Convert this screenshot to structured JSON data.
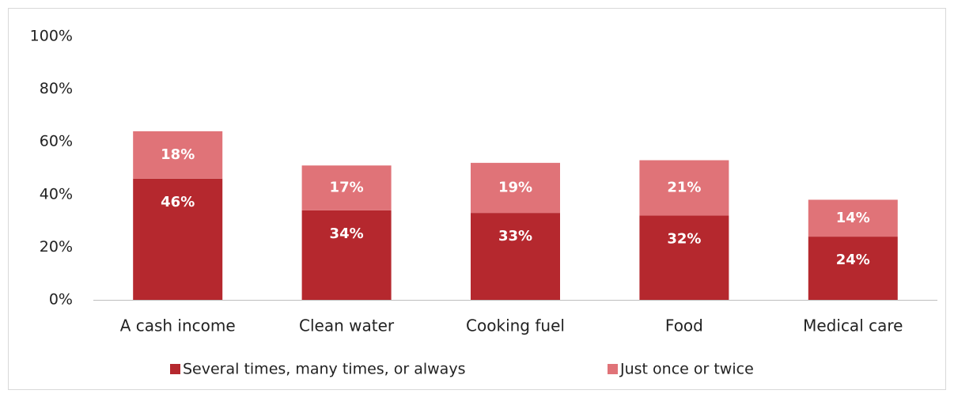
{
  "chart_data": {
    "type": "stacked_bar",
    "categories": [
      "A cash income",
      "Clean water",
      "Cooking fuel",
      "Food",
      "Medical care"
    ],
    "series": [
      {
        "name": "Several times, many times, or always",
        "color": "#b5282e",
        "values": [
          46,
          34,
          33,
          32,
          24
        ],
        "value_labels": [
          "46%",
          "34%",
          "33%",
          "32%",
          "24%"
        ]
      },
      {
        "name": "Just once or twice",
        "color": "#e07378",
        "values": [
          18,
          17,
          19,
          21,
          14
        ],
        "value_labels": [
          "18%",
          "17%",
          "19%",
          "21%",
          "14%"
        ]
      }
    ],
    "ylim": [
      0,
      100
    ],
    "yticks": [
      {
        "value": 0,
        "label": "0%"
      },
      {
        "value": 20,
        "label": "20%"
      },
      {
        "value": 40,
        "label": "40%"
      },
      {
        "value": 60,
        "label": "60%"
      },
      {
        "value": 80,
        "label": "80%"
      },
      {
        "value": 100,
        "label": "100%"
      }
    ],
    "grid": false
  }
}
